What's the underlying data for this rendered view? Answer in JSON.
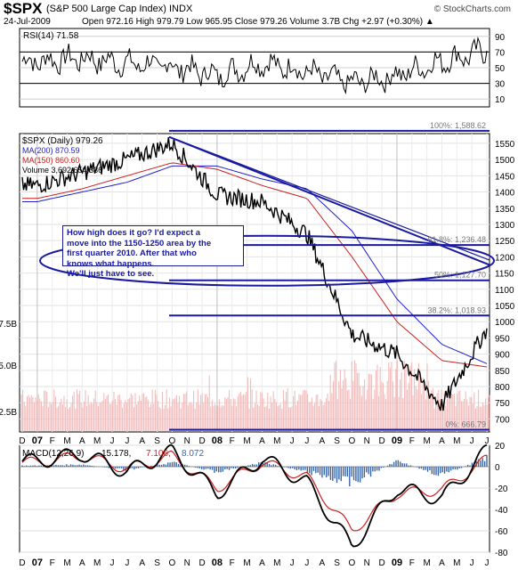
{
  "header": {
    "symbol": "$SPX",
    "name": "(S&P 500 Large Cap Index) INDX",
    "date": "24-Jul-2009",
    "quote": "Open 972.16  High 979.79  Low 965.95  Close 979.26  Volume 3.7B  Chg +2.97 (+0.30%) ▲",
    "watermark": "© StockCharts.com"
  },
  "annotation": {
    "lines": [
      "How high does it go?  I'd expect a",
      "move into the 1150-1250 area by the",
      "first quarter 2010.  After that who",
      "knows what happens.",
      "We'll just have to see."
    ]
  },
  "chart_data": [
    {
      "type": "line",
      "panel": "rsi",
      "legend": "RSI(14) 71.58",
      "ylim": [
        0,
        100
      ],
      "ticks": [
        90,
        70,
        50,
        30,
        10
      ],
      "reference_levels": [
        70,
        30
      ],
      "x": [
        "2007-01",
        "2007-04",
        "2007-07",
        "2007-10",
        "2008-01",
        "2008-04",
        "2008-07",
        "2008-10",
        "2009-01",
        "2009-04",
        "2009-07"
      ],
      "series": [
        {
          "name": "RSI(14)",
          "values": [
            58,
            62,
            55,
            52,
            40,
            56,
            45,
            30,
            40,
            58,
            71.58
          ]
        }
      ]
    },
    {
      "type": "line",
      "panel": "price",
      "legend": [
        "$SPX (Daily) 979.26",
        "MA(200) 870.59",
        "MA(150) 860.60",
        "Volume 3,692,654,336"
      ],
      "ylim": [
        660,
        1580
      ],
      "price_ticks": [
        1550,
        1500,
        1450,
        1400,
        1350,
        1300,
        1250,
        1200,
        1150,
        1100,
        1050,
        1000,
        950,
        900,
        850,
        800,
        750,
        700
      ],
      "volume_ticks": [
        "7.5B",
        "5.0B",
        "2.5B"
      ],
      "x": [
        "2007-01",
        "2007-04",
        "2007-07",
        "2007-10",
        "2008-01",
        "2008-04",
        "2008-07",
        "2008-10",
        "2009-01",
        "2009-04",
        "2009-07"
      ],
      "x_tick_labels": [
        "D",
        "07",
        "F",
        "M",
        "A",
        "M",
        "J",
        "J",
        "A",
        "S",
        "O",
        "N",
        "D",
        "08",
        "F",
        "M",
        "A",
        "M",
        "J",
        "J",
        "A",
        "S",
        "O",
        "N",
        "D",
        "09",
        "F",
        "M",
        "A",
        "M",
        "J",
        "J"
      ],
      "series": [
        {
          "name": "$SPX (Daily)",
          "values": [
            1420,
            1460,
            1500,
            1550,
            1390,
            1370,
            1270,
            960,
            900,
            740,
            979.26
          ]
        },
        {
          "name": "MA(200)",
          "values": [
            1370,
            1400,
            1430,
            1480,
            1480,
            1440,
            1410,
            1280,
            1070,
            930,
            870.59
          ]
        },
        {
          "name": "MA(150)",
          "values": [
            1380,
            1410,
            1450,
            1490,
            1470,
            1420,
            1380,
            1200,
            1000,
            880,
            860.6
          ]
        }
      ],
      "fibonacci_levels": [
        {
          "label": "100%: 1,588.62",
          "value": 1588.62
        },
        {
          "label": "61.8%: 1,236.48",
          "value": 1236.48
        },
        {
          "label": "50%: 1,127.70",
          "value": 1127.7
        },
        {
          "label": "38.2%: 1,018.93",
          "value": 1018.93
        },
        {
          "label": "0%: 666.79",
          "value": 666.79
        }
      ]
    },
    {
      "type": "line",
      "panel": "macd",
      "legend": [
        "MACD(12,26,9)",
        "15.178,",
        "7.106,",
        "8.072"
      ],
      "ylim": [
        -80,
        20
      ],
      "ticks": [
        20,
        0,
        -20,
        -40,
        -60,
        -80
      ],
      "x": [
        "2007-01",
        "2007-04",
        "2007-07",
        "2007-10",
        "2008-01",
        "2008-04",
        "2008-07",
        "2008-10",
        "2009-01",
        "2009-04",
        "2009-07"
      ],
      "series": [
        {
          "name": "MACD",
          "values": [
            5,
            12,
            -5,
            14,
            -25,
            8,
            -15,
            -75,
            -20,
            -30,
            15.178
          ]
        },
        {
          "name": "Signal",
          "values": [
            4,
            10,
            -2,
            10,
            -20,
            4,
            -10,
            -60,
            -25,
            -22,
            7.106
          ]
        },
        {
          "name": "Histogram",
          "values": [
            1,
            2,
            -3,
            4,
            -5,
            4,
            -5,
            -15,
            5,
            -8,
            8.072
          ]
        }
      ],
      "x_tick_labels": [
        "D",
        "07",
        "F",
        "M",
        "A",
        "M",
        "J",
        "J",
        "A",
        "S",
        "O",
        "N",
        "D",
        "08",
        "F",
        "M",
        "A",
        "M",
        "J",
        "J",
        "A",
        "S",
        "O",
        "N",
        "D",
        "09",
        "F",
        "M",
        "A",
        "M",
        "J",
        "J"
      ]
    }
  ],
  "colors": {
    "price": "#000000",
    "ma200": "#1f1fcc",
    "ma150": "#cc1f1f",
    "trend": "#1a1aa0",
    "volume": "#f2b6b6",
    "macd": "#000000",
    "signal": "#cc1f1f",
    "hist": "#3a66a8",
    "rsi": "#000000"
  }
}
